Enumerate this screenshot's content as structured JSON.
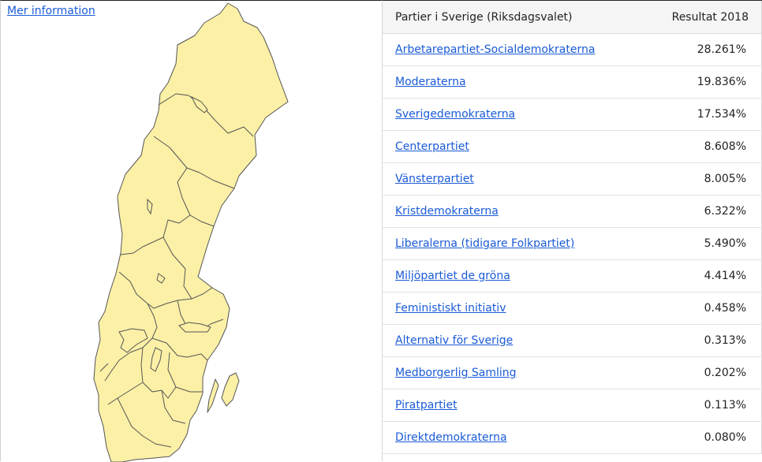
{
  "left": {
    "more_info_link": "Mer information"
  },
  "table": {
    "header_party": "Partier i Sverige (Riksdagsvalet)",
    "header_result": "Resultat 2018",
    "rows": [
      {
        "party": "Arbetarepartiet-Socialdemokraterna",
        "result": "28.261%"
      },
      {
        "party": "Moderaterna",
        "result": "19.836%"
      },
      {
        "party": "Sverigedemokraterna",
        "result": "17.534%"
      },
      {
        "party": "Centerpartiet",
        "result": "8.608%"
      },
      {
        "party": "Vänsterpartiet",
        "result": "8.005%"
      },
      {
        "party": "Kristdemokraterna",
        "result": "6.322%"
      },
      {
        "party": "Liberalerna (tidigare Folkpartiet)",
        "result": "5.490%"
      },
      {
        "party": "Miljöpartiet de gröna",
        "result": "4.414%"
      },
      {
        "party": "Feministiskt initiativ",
        "result": "0.458%"
      },
      {
        "party": "Alternativ för Sverige",
        "result": "0.313%"
      },
      {
        "party": "Medborgerlig Samling",
        "result": "0.202%"
      },
      {
        "party": "Piratpartiet",
        "result": "0.113%"
      },
      {
        "party": "Direktdemokraterna",
        "result": "0.080%"
      }
    ]
  },
  "colors": {
    "map_fill": "#fbf0a6",
    "map_stroke": "#555555",
    "link": "#1a5bd6"
  }
}
